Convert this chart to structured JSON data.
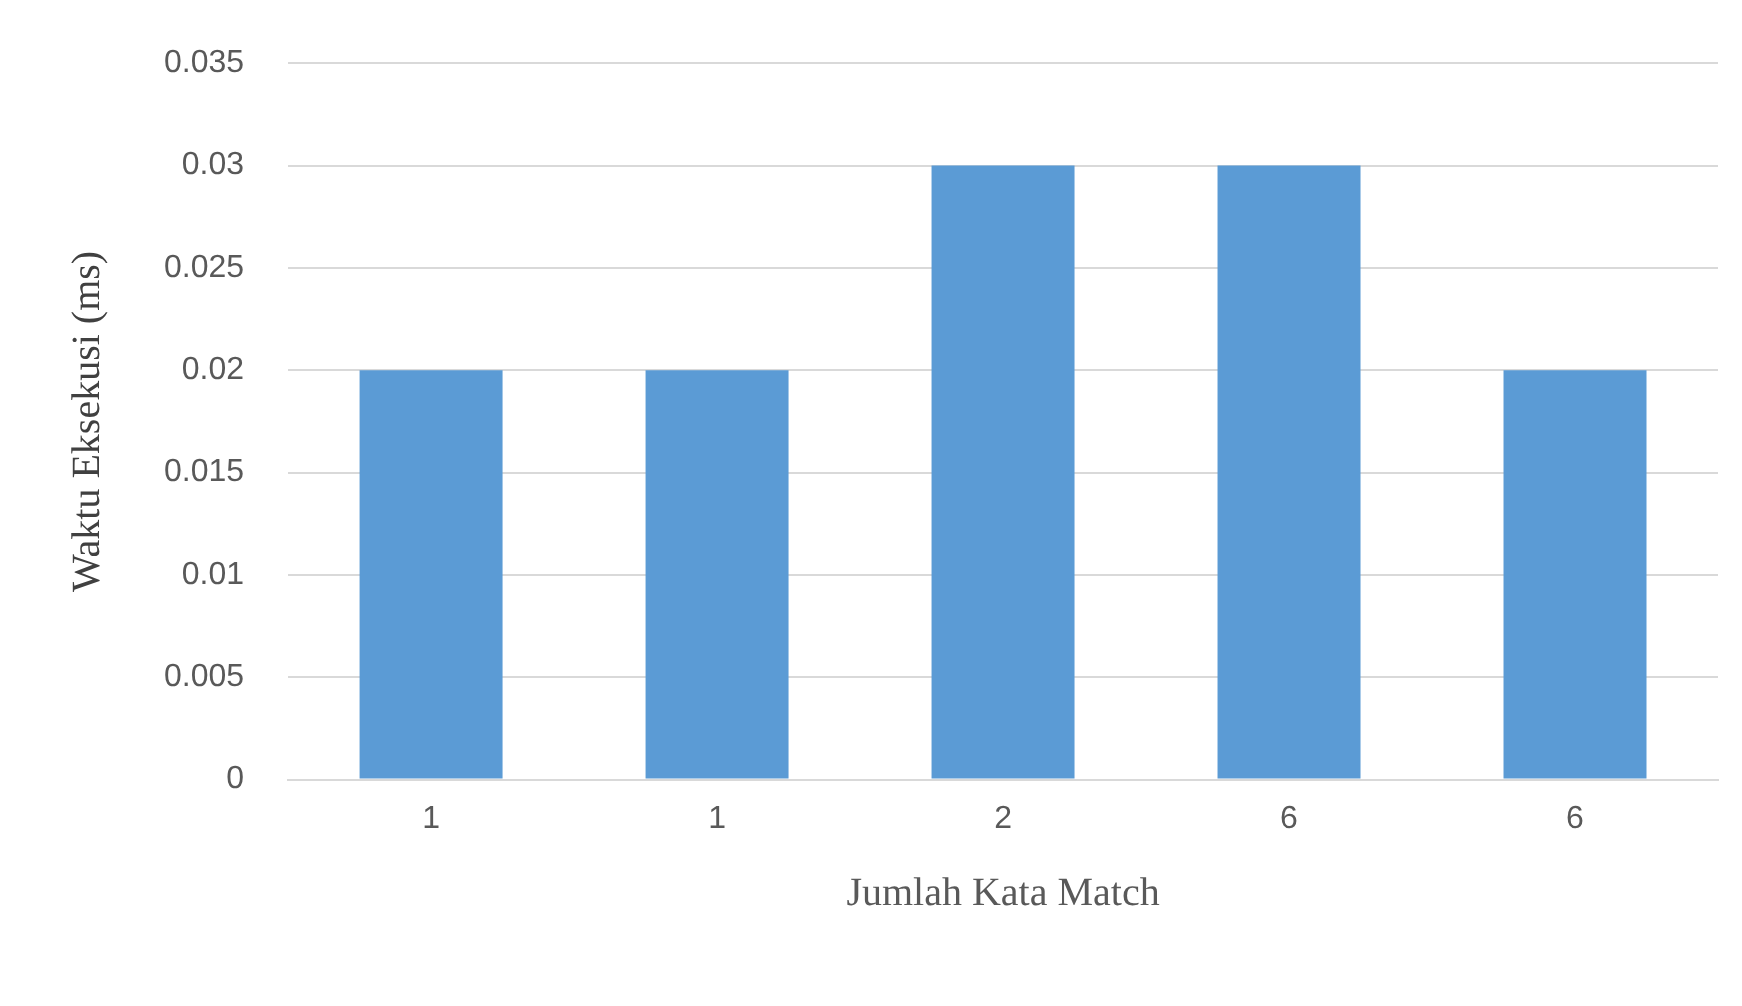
{
  "chart_data": {
    "type": "bar",
    "xlabel": "Jumlah Kata Match",
    "ylabel": "Waktu Eksekusi (ms)",
    "categories": [
      "1",
      "1",
      "2",
      "6",
      "6"
    ],
    "values": [
      0.02,
      0.02,
      0.03,
      0.03,
      0.02
    ],
    "color": "#5b9bd5",
    "ylim": [
      0,
      0.035
    ],
    "yticks": [
      0,
      0.005,
      0.01,
      0.015,
      0.02,
      0.025,
      0.03,
      0.035
    ],
    "grid": "y",
    "legend": false
  }
}
